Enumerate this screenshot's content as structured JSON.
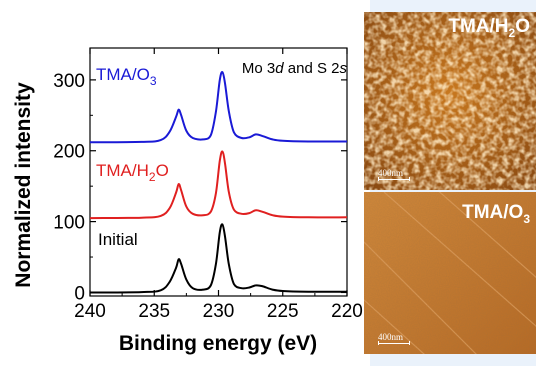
{
  "chart_data": {
    "type": "line",
    "xlabel": "Binding energy (eV)",
    "ylabel": "Normalized intensity",
    "annotation_title": "Mo 3d and S 2s",
    "xlim": [
      240,
      220
    ],
    "ylim": [
      -5,
      345
    ],
    "x_ticks": [
      240,
      235,
      230,
      225,
      220
    ],
    "x_tick_labels": [
      "240",
      "235",
      "230",
      "225",
      "220"
    ],
    "y_ticks": [
      0,
      100,
      200,
      300
    ],
    "y_tick_labels": [
      "0",
      "100",
      "200",
      "300"
    ],
    "x_reversed": true,
    "grid": false,
    "series": [
      {
        "name": "Initial",
        "color": "#000000",
        "baseline": 0,
        "points": [
          [
            240,
            0
          ],
          [
            236,
            0.5
          ],
          [
            234.5,
            3
          ],
          [
            233.8,
            15
          ],
          [
            233.3,
            35
          ],
          [
            233.1,
            47
          ],
          [
            232.9,
            40
          ],
          [
            232.5,
            18
          ],
          [
            232,
            6
          ],
          [
            231.2,
            4
          ],
          [
            230.6,
            10
          ],
          [
            230.2,
            40
          ],
          [
            229.9,
            85
          ],
          [
            229.7,
            96
          ],
          [
            229.5,
            80
          ],
          [
            229.2,
            40
          ],
          [
            228.8,
            12
          ],
          [
            228.2,
            6
          ],
          [
            227.6,
            7
          ],
          [
            227.1,
            10
          ],
          [
            226.6,
            9
          ],
          [
            225.8,
            4
          ],
          [
            225,
            2
          ],
          [
            223,
            1
          ],
          [
            220,
            1
          ]
        ]
      },
      {
        "name": "TMA/H2O",
        "color": "#e02020",
        "baseline": 105,
        "points": [
          [
            240,
            105
          ],
          [
            236,
            105.5
          ],
          [
            234.5,
            108
          ],
          [
            233.8,
            119
          ],
          [
            233.3,
            141
          ],
          [
            233.1,
            153
          ],
          [
            232.9,
            144
          ],
          [
            232.5,
            121
          ],
          [
            232,
            111
          ],
          [
            231.2,
            109
          ],
          [
            230.6,
            114
          ],
          [
            230.2,
            140
          ],
          [
            229.9,
            186
          ],
          [
            229.7,
            199
          ],
          [
            229.5,
            183
          ],
          [
            229.2,
            142
          ],
          [
            228.8,
            117
          ],
          [
            228.2,
            111
          ],
          [
            227.6,
            112
          ],
          [
            227.1,
            116
          ],
          [
            226.6,
            114
          ],
          [
            225.8,
            109
          ],
          [
            225,
            107
          ],
          [
            223,
            106
          ],
          [
            220,
            106
          ]
        ]
      },
      {
        "name": "TMA/O3",
        "color": "#1a1ad6",
        "baseline": 212,
        "points": [
          [
            240,
            212
          ],
          [
            236,
            212.5
          ],
          [
            234.5,
            215
          ],
          [
            233.8,
            227
          ],
          [
            233.3,
            248
          ],
          [
            233.1,
            258
          ],
          [
            232.9,
            250
          ],
          [
            232.5,
            228
          ],
          [
            232,
            218
          ],
          [
            231.2,
            216
          ],
          [
            230.6,
            222
          ],
          [
            230.2,
            255
          ],
          [
            229.9,
            300
          ],
          [
            229.7,
            311
          ],
          [
            229.5,
            296
          ],
          [
            229.2,
            256
          ],
          [
            228.8,
            226
          ],
          [
            228.2,
            218
          ],
          [
            227.6,
            219
          ],
          [
            227.1,
            223
          ],
          [
            226.6,
            221
          ],
          [
            225.8,
            216
          ],
          [
            225,
            214
          ],
          [
            223,
            213
          ],
          [
            220,
            213
          ]
        ]
      }
    ],
    "series_labels": [
      {
        "text_main": "TMA/O",
        "sub": "3",
        "color": "#1a1ad6"
      },
      {
        "text_main": "TMA/H",
        "sub": "2",
        "tail": "O",
        "color": "#e02020"
      },
      {
        "text_main": "Initial",
        "sub": "",
        "color": "#000000"
      }
    ]
  },
  "afm_images": [
    {
      "label_main": "TMA/H",
      "label_sub": "2",
      "label_tail": "O",
      "scale_bar": "400nm"
    },
    {
      "label_main": "TMA/O",
      "label_sub": "3",
      "label_tail": "",
      "scale_bar": "400nm"
    }
  ]
}
